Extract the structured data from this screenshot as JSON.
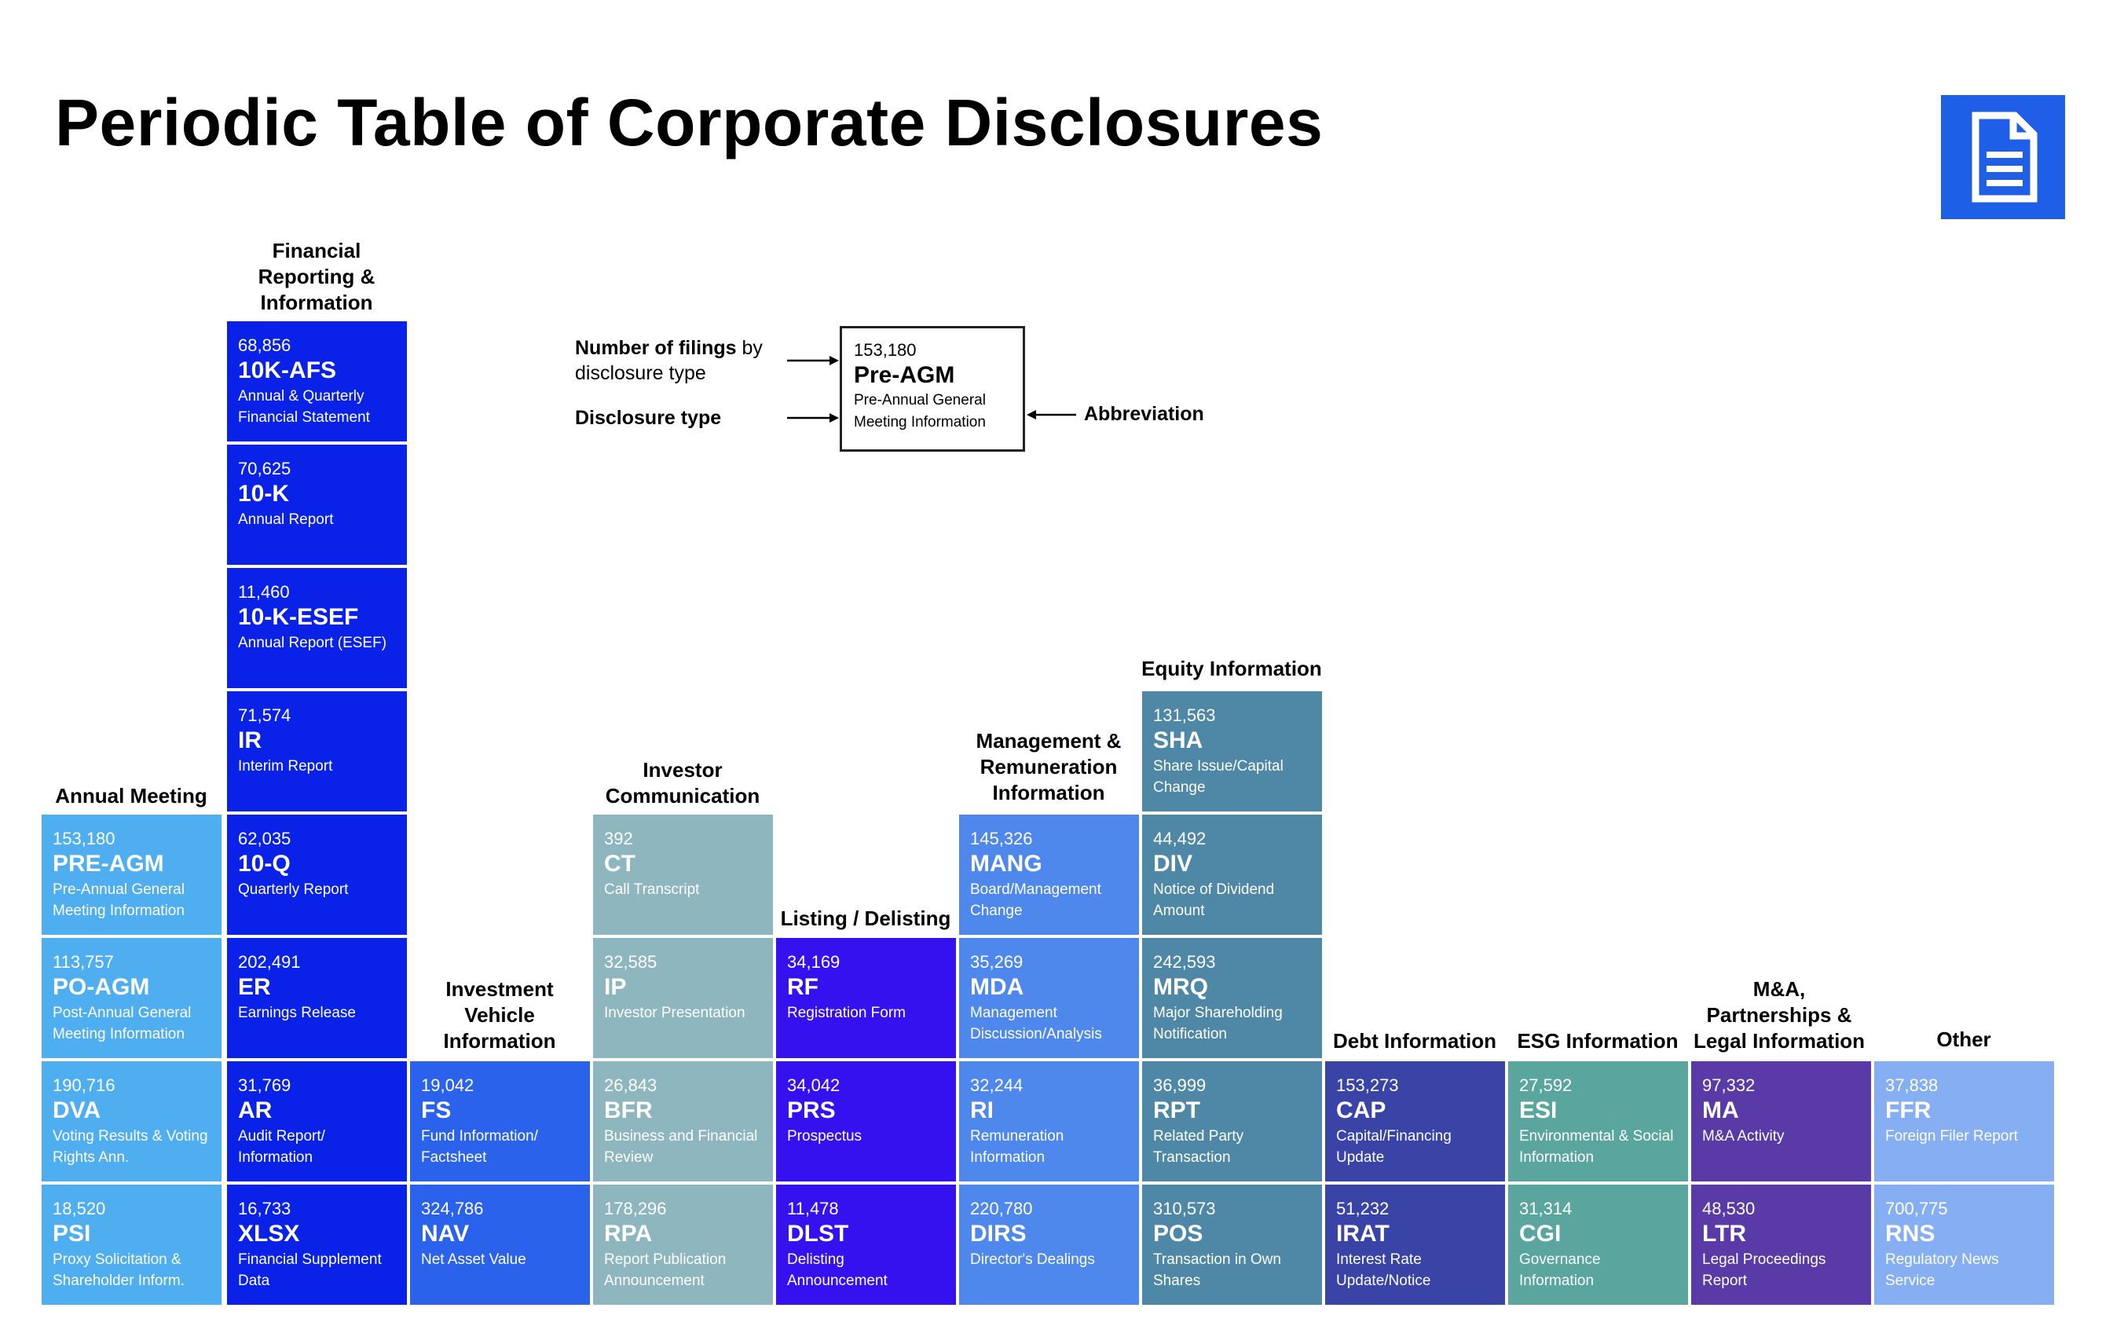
{
  "title": "Periodic Table of Corporate Disclosures",
  "icon": "document-icon",
  "colors": {
    "annual_meeting": "#4FAEF0",
    "financial": "#0A22E8",
    "investment": "#2A62EC",
    "investor_comm": "#8DB6BF",
    "listing": "#3611F0",
    "management": "#4E88EC",
    "equity": "#4E88A6",
    "debt": "#3A44A6",
    "esg": "#5AA59E",
    "ma": "#5A3AA6",
    "other": "#86AEF2"
  },
  "key": {
    "count": "153,180",
    "abbr": "Pre-AGM",
    "full": "Pre-Annual General Meeting Information",
    "label_count_bold": "Number of filings",
    "label_count_rest": " by",
    "label_count_line2": "disclosure type",
    "label_type": "Disclosure type",
    "label_abbr": "Abbreviation"
  },
  "groups": [
    {
      "name": "Annual Meeting",
      "color_key": "annual_meeting",
      "tiles": [
        {
          "count": "153,180",
          "abbr": "PRE-AGM",
          "full": "Pre-Annual General Meeting Information"
        },
        {
          "count": "113,757",
          "abbr": "PO-AGM",
          "full": "Post-Annual General Meeting Information"
        },
        {
          "count": "190,716",
          "abbr": "DVA",
          "full": "Voting Results & Voting Rights Ann."
        },
        {
          "count": "18,520",
          "abbr": "PSI",
          "full": "Proxy Solicitation & Shareholder Inform."
        }
      ]
    },
    {
      "name": "Financial Reporting & Information",
      "color_key": "financial",
      "tiles": [
        {
          "count": "68,856",
          "abbr": "10K-AFS",
          "full": "Annual & Quarterly Financial Statement"
        },
        {
          "count": "70,625",
          "abbr": "10-K",
          "full": "Annual Report"
        },
        {
          "count": "11,460",
          "abbr": "10-K-ESEF",
          "full": "Annual Report (ESEF)"
        },
        {
          "count": "71,574",
          "abbr": "IR",
          "full": "Interim Report"
        },
        {
          "count": "62,035",
          "abbr": "10-Q",
          "full": "Quarterly Report"
        },
        {
          "count": "202,491",
          "abbr": "ER",
          "full": "Earnings Release"
        },
        {
          "count": "31,769",
          "abbr": "AR",
          "full": "Audit Report/ Information"
        },
        {
          "count": "16,733",
          "abbr": "XLSX",
          "full": "Financial Supplement Data"
        }
      ]
    },
    {
      "name": "Investment Vehicle Information",
      "color_key": "investment",
      "tiles": [
        {
          "count": "19,042",
          "abbr": "FS",
          "full": "Fund Information/ Factsheet"
        },
        {
          "count": "324,786",
          "abbr": "NAV",
          "full": "Net Asset Value"
        }
      ]
    },
    {
      "name": "Investor Communication",
      "color_key": "investor_comm",
      "tiles": [
        {
          "count": "392",
          "abbr": "CT",
          "full": "Call Transcript"
        },
        {
          "count": "32,585",
          "abbr": "IP",
          "full": "Investor Presentation"
        },
        {
          "count": "26,843",
          "abbr": "BFR",
          "full": "Business and Financial Review"
        },
        {
          "count": "178,296",
          "abbr": "RPA",
          "full": "Report Publication Announcement"
        }
      ]
    },
    {
      "name": "Listing / Delisting",
      "color_key": "listing",
      "tiles": [
        {
          "count": "34,169",
          "abbr": "RF",
          "full": "Registration Form"
        },
        {
          "count": "34,042",
          "abbr": "PRS",
          "full": "Prospectus"
        },
        {
          "count": "11,478",
          "abbr": "DLST",
          "full": "Delisting Announcement"
        }
      ]
    },
    {
      "name": "Management & Remuneration Information",
      "color_key": "management",
      "tiles": [
        {
          "count": "145,326",
          "abbr": "MANG",
          "full": "Board/Management Change"
        },
        {
          "count": "35,269",
          "abbr": "MDA",
          "full": "Management Discussion/Analysis"
        },
        {
          "count": "32,244",
          "abbr": "RI",
          "full": "Remuneration Information"
        },
        {
          "count": "220,780",
          "abbr": "DIRS",
          "full": "Director's Dealings"
        }
      ]
    },
    {
      "name": "Equity Information",
      "color_key": "equity",
      "tiles": [
        {
          "count": "131,563",
          "abbr": "SHA",
          "full": "Share Issue/Capital Change"
        },
        {
          "count": "44,492",
          "abbr": "DIV",
          "full": "Notice of Dividend Amount"
        },
        {
          "count": "242,593",
          "abbr": "MRQ",
          "full": "Major Shareholding Notification"
        },
        {
          "count": "36,999",
          "abbr": "RPT",
          "full": "Related Party Transaction"
        },
        {
          "count": "310,573",
          "abbr": "POS",
          "full": "Transaction in Own Shares"
        }
      ]
    },
    {
      "name": "Debt Information",
      "color_key": "debt",
      "tiles": [
        {
          "count": "153,273",
          "abbr": "CAP",
          "full": "Capital/Financing Update"
        },
        {
          "count": "51,232",
          "abbr": "IRAT",
          "full": "Interest Rate Update/Notice"
        }
      ]
    },
    {
      "name": "ESG Information",
      "color_key": "esg",
      "tiles": [
        {
          "count": "27,592",
          "abbr": "ESI",
          "full": "Environmental & Social Information"
        },
        {
          "count": "31,314",
          "abbr": "CGI",
          "full": "Governance Information"
        }
      ]
    },
    {
      "name": "M&A, Partnerships & Legal Information",
      "color_key": "ma",
      "tiles": [
        {
          "count": "97,332",
          "abbr": "MA",
          "full": "M&A Activity"
        },
        {
          "count": "48,530",
          "abbr": "LTR",
          "full": "Legal Proceedings Report"
        }
      ]
    },
    {
      "name": "Other",
      "color_key": "other",
      "tiles": [
        {
          "count": "37,838",
          "abbr": "FFR",
          "full": "Foreign Filer Report"
        },
        {
          "count": "700,775",
          "abbr": "RNS",
          "full": "Regulatory News Service"
        }
      ]
    }
  ]
}
